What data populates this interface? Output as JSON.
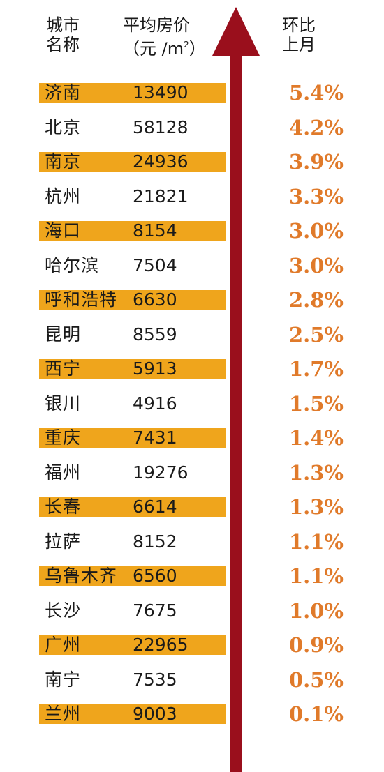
{
  "header": {
    "city_line1": "城市",
    "city_line2": "名称",
    "price_line1": "平均房价",
    "price_line2": "（元 /m",
    "price_sup": "2",
    "price_close": "）",
    "change_line1": "环比",
    "change_line2": "上月"
  },
  "colors": {
    "band": "#efa51c",
    "arrow": "#9a0f1c",
    "percent": "#e07a2a"
  },
  "chart_data": {
    "type": "table",
    "columns": [
      "城市名称",
      "平均房价（元/m²）",
      "环比上月"
    ],
    "rows": [
      {
        "city": "济南",
        "price": "13490",
        "change": "5.4%",
        "highlighted": true
      },
      {
        "city": "北京",
        "price": "58128",
        "change": "4.2%",
        "highlighted": false
      },
      {
        "city": "南京",
        "price": "24936",
        "change": "3.9%",
        "highlighted": true
      },
      {
        "city": "杭州",
        "price": "21821",
        "change": "3.3%",
        "highlighted": false
      },
      {
        "city": "海口",
        "price": "8154",
        "change": "3.0%",
        "highlighted": true
      },
      {
        "city": "哈尔滨",
        "price": "7504",
        "change": "3.0%",
        "highlighted": false
      },
      {
        "city": "呼和浩特",
        "price": "6630",
        "change": "2.8%",
        "highlighted": true
      },
      {
        "city": "昆明",
        "price": "8559",
        "change": "2.5%",
        "highlighted": false
      },
      {
        "city": "西宁",
        "price": "5913",
        "change": "1.7%",
        "highlighted": true
      },
      {
        "city": "银川",
        "price": "4916",
        "change": "1.5%",
        "highlighted": false
      },
      {
        "city": "重庆",
        "price": "7431",
        "change": "1.4%",
        "highlighted": true
      },
      {
        "city": "福州",
        "price": "19276",
        "change": "1.3%",
        "highlighted": false
      },
      {
        "city": "长春",
        "price": "6614",
        "change": "1.3%",
        "highlighted": true
      },
      {
        "city": "拉萨",
        "price": "8152",
        "change": "1.1%",
        "highlighted": false
      },
      {
        "city": "乌鲁木齐",
        "price": "6560",
        "change": "1.1%",
        "highlighted": true
      },
      {
        "city": "长沙",
        "price": "7675",
        "change": "1.0%",
        "highlighted": false
      },
      {
        "city": "广州",
        "price": "22965",
        "change": "0.9%",
        "highlighted": true
      },
      {
        "city": "南宁",
        "price": "7535",
        "change": "0.5%",
        "highlighted": false
      },
      {
        "city": "兰州",
        "price": "9003",
        "change": "0.1%",
        "highlighted": true
      }
    ]
  }
}
